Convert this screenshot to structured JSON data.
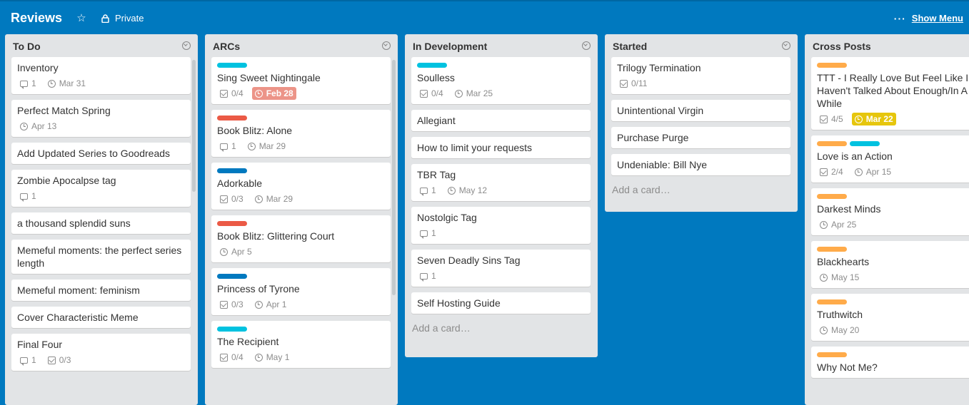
{
  "board": {
    "title": "Reviews",
    "visibility": "Private",
    "show_menu_label": "Show Menu",
    "colors": {
      "background": "#0079bf",
      "list_bg": "#e2e4e6"
    }
  },
  "label_colors": {
    "cyan": "#00c2e0",
    "red": "#eb5a46",
    "blue": "#0079bf",
    "orange": "#ffab4a"
  },
  "add_card_label": "Add a card…",
  "lists": [
    {
      "title": "To Do",
      "cards": [
        {
          "title": "Inventory",
          "comments": "1",
          "due": "Mar 31"
        },
        {
          "title": "Perfect Match Spring",
          "due": "Apr 13"
        },
        {
          "title": "Add Updated Series to Goodreads"
        },
        {
          "title": "Zombie Apocalpse tag",
          "comments": "1"
        },
        {
          "title": "a thousand splendid suns"
        },
        {
          "title": "Memeful moments: the perfect series length"
        },
        {
          "title": "Memeful moment: feminism"
        },
        {
          "title": "Cover Characteristic Meme"
        },
        {
          "title": "Final Four",
          "comments": "1",
          "checklist": "0/3"
        }
      ]
    },
    {
      "title": "ARCs",
      "cards": [
        {
          "labels": [
            "cyan"
          ],
          "title": "Sing Sweet Nightingale",
          "checklist": "0/4",
          "due": "Feb 28",
          "due_state": "overdue"
        },
        {
          "labels": [
            "red"
          ],
          "title": "Book Blitz: Alone",
          "comments": "1",
          "due": "Mar 29"
        },
        {
          "labels": [
            "blue"
          ],
          "title": "Adorkable",
          "checklist": "0/3",
          "due": "Mar 29"
        },
        {
          "labels": [
            "red"
          ],
          "title": "Book Blitz: Glittering Court",
          "due": "Apr 5"
        },
        {
          "labels": [
            "blue"
          ],
          "title": "Princess of Tyrone",
          "checklist": "0/3",
          "due": "Apr 1"
        },
        {
          "labels": [
            "cyan"
          ],
          "title": "The Recipient",
          "checklist": "0/4",
          "due": "May 1"
        }
      ]
    },
    {
      "title": "In Development",
      "cards": [
        {
          "labels": [
            "cyan"
          ],
          "title": "Soulless",
          "checklist": "0/4",
          "due": "Mar 25"
        },
        {
          "title": "Allegiant"
        },
        {
          "title": "How to limit your requests"
        },
        {
          "title": "TBR Tag",
          "comments": "1",
          "due": "May 12"
        },
        {
          "title": "Nostolgic Tag",
          "comments": "1"
        },
        {
          "title": "Seven Deadly Sins Tag",
          "comments": "1"
        },
        {
          "title": "Self Hosting Guide"
        }
      ],
      "show_add": true
    },
    {
      "title": "Started",
      "cards": [
        {
          "title": "Trilogy Termination",
          "checklist": "0/11"
        },
        {
          "title": "Unintentional Virgin"
        },
        {
          "title": "Purchase Purge"
        },
        {
          "title": "Undeniable: Bill Nye"
        }
      ],
      "show_add": true
    },
    {
      "title": "Cross Posts",
      "cards": [
        {
          "labels": [
            "orange"
          ],
          "title": "TTT - I Really Love But Feel Like I Haven't Talked About Enough/In A While",
          "checklist": "4/5",
          "due": "Mar 22",
          "due_state": "due-soon"
        },
        {
          "labels": [
            "orange",
            "cyan"
          ],
          "title": "Love is an Action",
          "checklist": "2/4",
          "due": "Apr 15"
        },
        {
          "labels": [
            "orange"
          ],
          "title": "Darkest Minds",
          "due": "Apr 25"
        },
        {
          "labels": [
            "orange"
          ],
          "title": "Blackhearts",
          "due": "May 15"
        },
        {
          "labels": [
            "orange"
          ],
          "title": "Truthwitch",
          "due": "May 20"
        },
        {
          "labels": [
            "orange"
          ],
          "title": "Why Not Me?"
        }
      ]
    }
  ]
}
